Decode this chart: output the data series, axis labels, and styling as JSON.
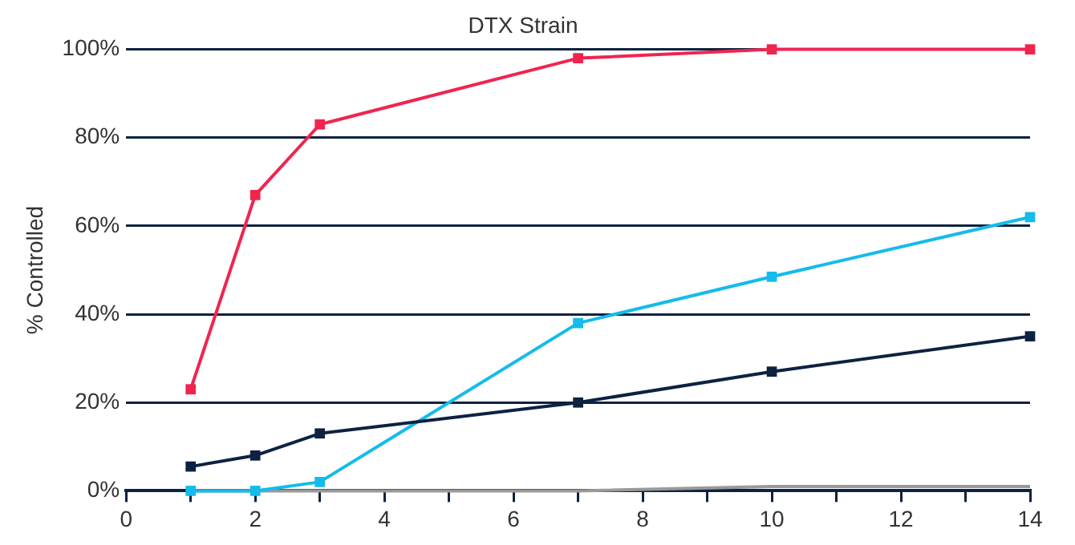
{
  "chart_data": {
    "type": "line",
    "title": "DTX Strain",
    "ylabel": "% Controlled",
    "x": [
      1,
      2,
      3,
      7,
      10,
      14
    ],
    "series": [
      {
        "color": "#f0254f",
        "values": [
          23,
          67,
          83,
          98,
          100,
          100
        ]
      },
      {
        "color": "#0d2240",
        "values": [
          5.5,
          8,
          13,
          20,
          27,
          35
        ]
      },
      {
        "color": "#14bbeb",
        "values": [
          0,
          0,
          2,
          38,
          48.5,
          62
        ]
      },
      {
        "color": "#999999",
        "values": [
          0,
          0,
          0,
          0,
          1,
          1
        ],
        "marker": "none"
      }
    ],
    "xlim": [
      0,
      14
    ],
    "xticks": [
      0,
      {
        "value": 1,
        "label": null
      },
      2,
      {
        "value": 3,
        "label": null
      },
      4,
      {
        "value": 5,
        "label": null
      },
      6,
      {
        "value": 7,
        "label": null
      },
      8,
      {
        "value": 9,
        "label": null
      },
      10,
      {
        "value": 11,
        "label": null
      },
      12,
      {
        "value": 13,
        "label": null
      },
      14
    ],
    "ylim": [
      0,
      100
    ],
    "yticks": [
      {
        "value": 0,
        "label": "0%"
      },
      {
        "value": 20,
        "label": "20%"
      },
      {
        "value": 40,
        "label": "40%"
      },
      {
        "value": 60,
        "label": "60%"
      },
      {
        "value": 80,
        "label": "80%"
      },
      {
        "value": 100,
        "label": "100%"
      }
    ],
    "grid": "y",
    "legend": false,
    "marker": "square",
    "line_style": "solid"
  }
}
